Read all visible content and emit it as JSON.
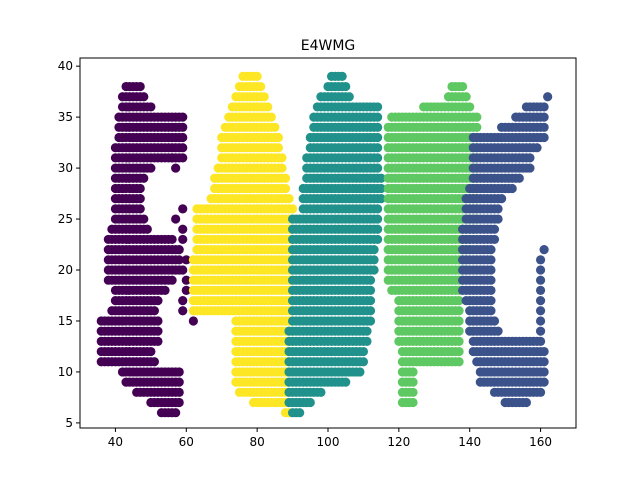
{
  "chart_data": {
    "type": "scatter",
    "title": "E4WMG",
    "xlabel": "",
    "ylabel": "",
    "xlim": [
      30,
      170
    ],
    "ylim": [
      4.5,
      40.8
    ],
    "x_ticks": [
      40,
      60,
      80,
      100,
      120,
      140,
      160
    ],
    "y_ticks": [
      5,
      10,
      15,
      20,
      25,
      30,
      35,
      40
    ],
    "grid": false,
    "legend": "none",
    "series": [
      {
        "color": "#440154",
        "spans": [
          [
            38,
            43,
            47
          ],
          [
            37,
            42,
            48
          ],
          [
            36,
            42,
            50
          ],
          [
            35,
            41,
            59
          ],
          [
            34,
            41,
            59
          ],
          [
            33,
            41,
            59
          ],
          [
            32,
            40,
            59
          ],
          [
            31,
            40,
            59
          ],
          [
            30,
            40,
            50
          ],
          [
            29,
            40,
            48
          ],
          [
            28,
            40,
            47
          ],
          [
            27,
            40,
            47
          ],
          [
            26,
            40,
            47
          ],
          [
            25,
            40,
            48
          ],
          [
            24,
            39,
            49
          ],
          [
            23,
            38,
            56
          ],
          [
            22,
            38,
            58
          ],
          [
            21,
            38,
            58
          ],
          [
            20,
            38,
            58
          ],
          [
            19,
            38,
            56
          ],
          [
            18,
            40,
            54
          ],
          [
            17,
            40,
            52
          ],
          [
            16,
            39,
            51
          ],
          [
            15,
            36,
            52
          ],
          [
            14,
            36,
            52
          ],
          [
            13,
            36,
            52
          ],
          [
            12,
            36,
            50
          ],
          [
            11,
            36,
            51
          ],
          [
            10,
            42,
            58
          ],
          [
            9,
            43,
            58
          ],
          [
            8,
            46,
            58
          ],
          [
            7,
            50,
            58
          ],
          [
            6,
            53,
            57
          ]
        ],
        "extra_points": [
          [
            56,
            31
          ],
          [
            57,
            30
          ],
          [
            57,
            25
          ],
          [
            59,
            26
          ],
          [
            59,
            24
          ],
          [
            59,
            23
          ],
          [
            60,
            21
          ],
          [
            59,
            20
          ],
          [
            60,
            19
          ],
          [
            60,
            18
          ],
          [
            59,
            17
          ],
          [
            59,
            16
          ],
          [
            62,
            15
          ]
        ]
      },
      {
        "color": "#fde725",
        "spans": [
          [
            39,
            76,
            80
          ],
          [
            38,
            75,
            81
          ],
          [
            37,
            74,
            82
          ],
          [
            36,
            73,
            83
          ],
          [
            35,
            72,
            84
          ],
          [
            34,
            71,
            85
          ],
          [
            33,
            70,
            86
          ],
          [
            32,
            70,
            86
          ],
          [
            31,
            70,
            87
          ],
          [
            30,
            69,
            87
          ],
          [
            29,
            68,
            88
          ],
          [
            28,
            68,
            88
          ],
          [
            27,
            67,
            89
          ],
          [
            26,
            63,
            90
          ],
          [
            25,
            63,
            90
          ],
          [
            24,
            63,
            90
          ],
          [
            23,
            63,
            90
          ],
          [
            22,
            63,
            90
          ],
          [
            21,
            62,
            90
          ],
          [
            20,
            62,
            90
          ],
          [
            19,
            62,
            90
          ],
          [
            18,
            62,
            90
          ],
          [
            17,
            62,
            90
          ],
          [
            16,
            62,
            90
          ],
          [
            15,
            74,
            90
          ],
          [
            14,
            74,
            90
          ],
          [
            13,
            74,
            90
          ],
          [
            12,
            74,
            90
          ],
          [
            11,
            74,
            90
          ],
          [
            10,
            74,
            90
          ],
          [
            9,
            74,
            89
          ],
          [
            8,
            75,
            89
          ],
          [
            7,
            79,
            89
          ],
          [
            6,
            88,
            89
          ]
        ]
      },
      {
        "color": "#21918c",
        "spans": [
          [
            39,
            101,
            104
          ],
          [
            38,
            100,
            105
          ],
          [
            37,
            98,
            106
          ],
          [
            36,
            97,
            114
          ],
          [
            35,
            96,
            114
          ],
          [
            34,
            96,
            114
          ],
          [
            33,
            95,
            114
          ],
          [
            32,
            95,
            114
          ],
          [
            31,
            94,
            114
          ],
          [
            30,
            94,
            114
          ],
          [
            29,
            94,
            115
          ],
          [
            28,
            93,
            115
          ],
          [
            27,
            93,
            115
          ],
          [
            26,
            93,
            114
          ],
          [
            25,
            90,
            114
          ],
          [
            24,
            90,
            114
          ],
          [
            23,
            90,
            114
          ],
          [
            22,
            90,
            113
          ],
          [
            21,
            90,
            113
          ],
          [
            20,
            90,
            113
          ],
          [
            19,
            90,
            112
          ],
          [
            18,
            90,
            112
          ],
          [
            17,
            90,
            112
          ],
          [
            16,
            90,
            112
          ],
          [
            15,
            90,
            112
          ],
          [
            14,
            89,
            111
          ],
          [
            13,
            89,
            111
          ],
          [
            12,
            89,
            110
          ],
          [
            11,
            89,
            110
          ],
          [
            10,
            89,
            109
          ],
          [
            9,
            89,
            105
          ],
          [
            8,
            89,
            98
          ],
          [
            7,
            89,
            95
          ],
          [
            6,
            90,
            92
          ]
        ]
      },
      {
        "color": "#5ec962",
        "spans": [
          [
            38,
            135,
            138
          ],
          [
            37,
            134,
            139
          ],
          [
            36,
            127,
            140
          ],
          [
            35,
            118,
            142
          ],
          [
            34,
            117,
            142
          ],
          [
            33,
            117,
            142
          ],
          [
            32,
            117,
            142
          ],
          [
            31,
            117,
            142
          ],
          [
            30,
            117,
            142
          ],
          [
            29,
            117,
            142
          ],
          [
            28,
            117,
            142
          ],
          [
            27,
            117,
            142
          ],
          [
            26,
            117,
            142
          ],
          [
            25,
            117,
            142
          ],
          [
            24,
            117,
            141
          ],
          [
            23,
            117,
            140
          ],
          [
            22,
            117,
            140
          ],
          [
            21,
            117,
            139
          ],
          [
            20,
            117,
            139
          ],
          [
            19,
            117,
            138
          ],
          [
            18,
            118,
            137
          ],
          [
            17,
            120,
            137
          ],
          [
            16,
            120,
            137
          ],
          [
            15,
            120,
            137
          ],
          [
            14,
            120,
            137
          ],
          [
            13,
            120,
            137
          ],
          [
            12,
            121,
            137
          ],
          [
            11,
            121,
            137
          ],
          [
            10,
            121,
            124
          ],
          [
            9,
            121,
            124
          ],
          [
            8,
            121,
            124
          ],
          [
            7,
            121,
            124
          ]
        ]
      },
      {
        "color": "#3b528b",
        "spans": [
          [
            37,
            162,
            162
          ],
          [
            36,
            156,
            161
          ],
          [
            35,
            153,
            161
          ],
          [
            34,
            149,
            161
          ],
          [
            33,
            141,
            161
          ],
          [
            32,
            141,
            159
          ],
          [
            31,
            141,
            157
          ],
          [
            30,
            141,
            157
          ],
          [
            29,
            141,
            154
          ],
          [
            28,
            140,
            152
          ],
          [
            27,
            139,
            149
          ],
          [
            26,
            139,
            148
          ],
          [
            25,
            139,
            148
          ],
          [
            24,
            138,
            147
          ],
          [
            23,
            138,
            147
          ],
          [
            22,
            138,
            146
          ],
          [
            21,
            138,
            146
          ],
          [
            20,
            138,
            146
          ],
          [
            19,
            138,
            146
          ],
          [
            18,
            138,
            146
          ],
          [
            17,
            139,
            146
          ],
          [
            16,
            140,
            146
          ],
          [
            15,
            140,
            147
          ],
          [
            14,
            140,
            148
          ],
          [
            13,
            141,
            160
          ],
          [
            12,
            141,
            161
          ],
          [
            11,
            142,
            161
          ],
          [
            10,
            143,
            161
          ],
          [
            9,
            143,
            161
          ],
          [
            8,
            147,
            160
          ],
          [
            7,
            150,
            156
          ]
        ],
        "extra_points": [
          [
            161,
            22
          ],
          [
            160,
            21
          ],
          [
            160,
            20
          ],
          [
            160,
            19
          ],
          [
            160,
            18
          ],
          [
            160,
            17
          ],
          [
            160,
            16
          ],
          [
            160,
            15
          ],
          [
            160,
            14
          ]
        ]
      }
    ]
  }
}
